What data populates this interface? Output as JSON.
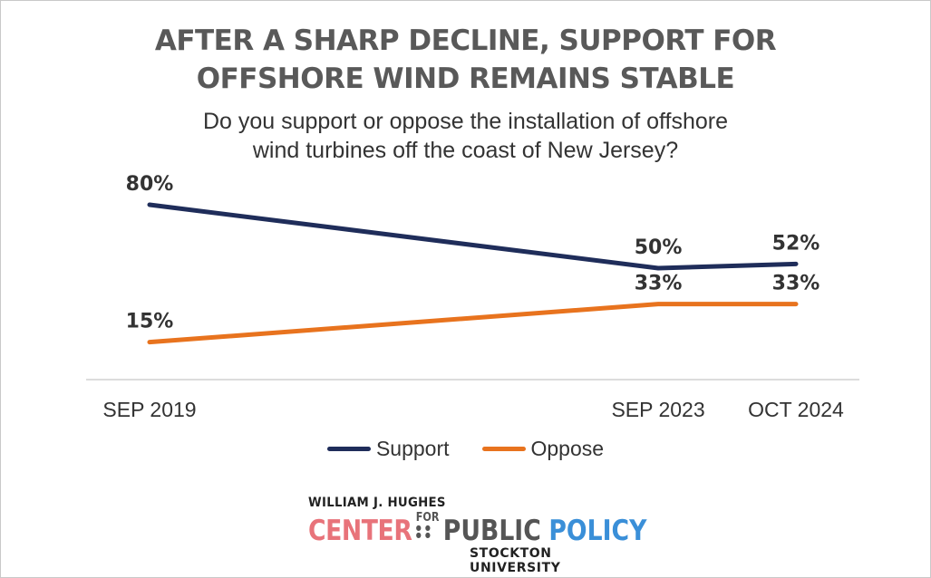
{
  "chart_data": {
    "type": "line",
    "title_lines": [
      "AFTER A SHARP DECLINE, SUPPORT FOR",
      "OFFSHORE WIND REMAINS STABLE"
    ],
    "subtitle_lines": [
      "Do you support or oppose the installation of offshore",
      "wind turbines off the coast of New Jersey?"
    ],
    "x": [
      "SEP 2019",
      "SEP 2023",
      "OCT 2024"
    ],
    "x_dates": [
      "2019-09",
      "2023-09",
      "2024-10"
    ],
    "series": [
      {
        "name": "Support",
        "color": "#1f2d5a",
        "values": [
          80,
          50,
          52
        ],
        "labels": [
          "80%",
          "50%",
          "52%"
        ]
      },
      {
        "name": "Oppose",
        "color": "#e8731e",
        "values": [
          15,
          33,
          33
        ],
        "labels": [
          "15%",
          "33%",
          "33%"
        ]
      }
    ],
    "ylim": [
      0,
      100
    ],
    "grid": false,
    "legend": "bottom"
  },
  "logo": {
    "line1": "WILLIAM J. HUGHES",
    "center": "CENTER",
    "for": "FOR",
    "public": "PUBLIC",
    "policy": "POLICY",
    "university": "STOCKTON UNIVERSITY"
  }
}
